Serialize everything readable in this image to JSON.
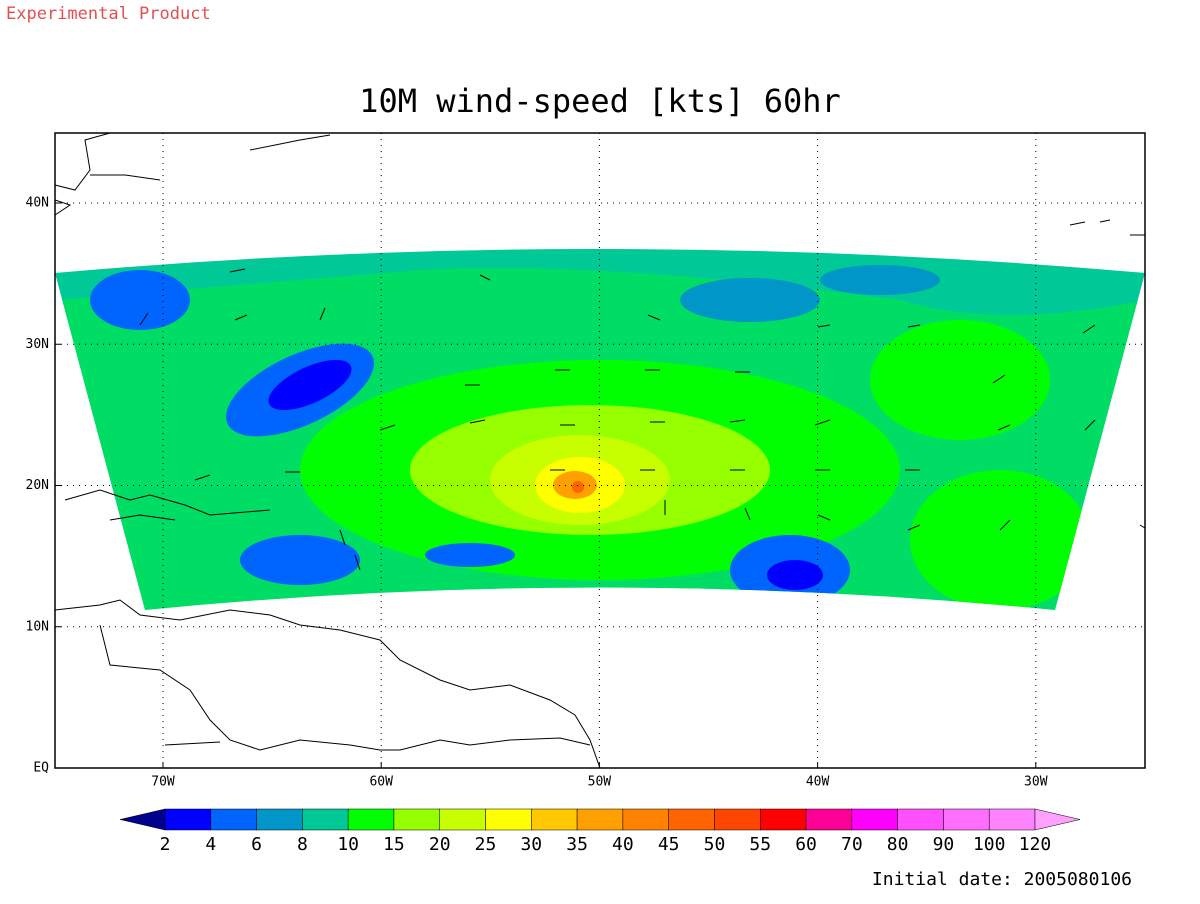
{
  "header": {
    "note": "Experimental Product",
    "title": "10M wind-speed [kts] 60hr"
  },
  "map": {
    "lon_labels": [
      "70W",
      "60W",
      "50W",
      "40W",
      "30W"
    ],
    "lat_labels": [
      "40N",
      "30N",
      "20N",
      "10N",
      "EQ"
    ]
  },
  "colorbar": {
    "levels": [
      2,
      4,
      6,
      8,
      10,
      15,
      20,
      25,
      30,
      35,
      40,
      45,
      50,
      55,
      60,
      70,
      80,
      90,
      100,
      120
    ],
    "colors": [
      "#00008c",
      "#0000ff",
      "#0064ff",
      "#0096c8",
      "#00c896",
      "#00ff00",
      "#96ff00",
      "#c8ff00",
      "#ffff00",
      "#ffc800",
      "#ffa000",
      "#ff8200",
      "#ff6400",
      "#ff4600",
      "#ff0000",
      "#ff0096",
      "#ff00ff",
      "#ff50ff",
      "#ff6eff",
      "#ff82ff",
      "#ffa0ff"
    ]
  },
  "footer": {
    "initial_date": "Initial date: 2005080106"
  }
}
